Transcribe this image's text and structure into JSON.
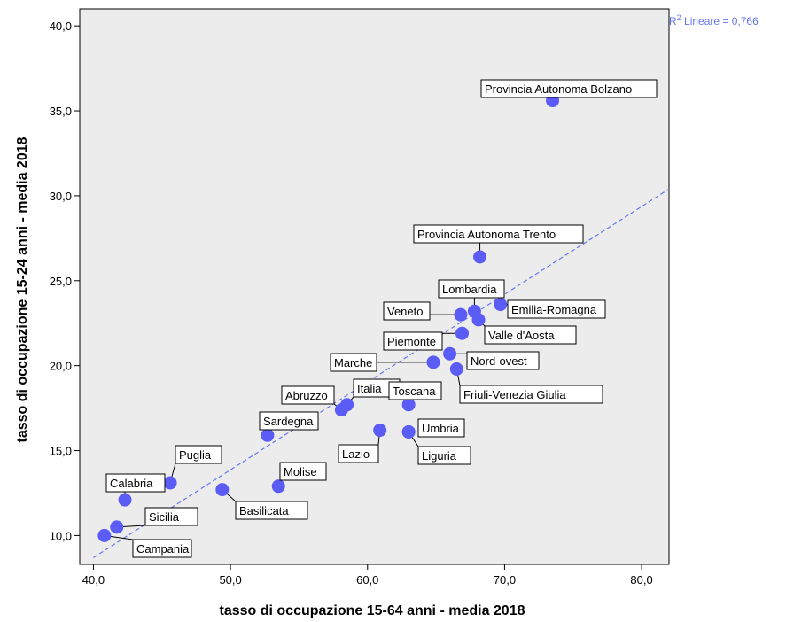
{
  "chart_data": {
    "type": "scatter",
    "xlabel": "tasso di occupazione 15-64 anni - media 2018",
    "ylabel": "tasso di occupazione 15-24 anni - media 2018",
    "xlim": [
      39.0,
      82.0
    ],
    "ylim": [
      8.3,
      41.0
    ],
    "x_ticks": [
      40,
      50,
      60,
      70,
      80
    ],
    "y_ticks": [
      10,
      15,
      20,
      25,
      30,
      35,
      40
    ],
    "x_tick_labels": [
      "40,0",
      "50,0",
      "60,0",
      "70,0",
      "80,0"
    ],
    "y_tick_labels": [
      "10,0",
      "15,0",
      "20,0",
      "25,0",
      "30,0",
      "35,0",
      "40,0"
    ],
    "grid": false,
    "marker_color": "#5b5bf5",
    "plot_background": "#ececec",
    "fit_line": {
      "label": "R2 Lineare = 0,766",
      "r2_prefix": "R",
      "r2_sup": "2",
      "r2_suffix": " Lineare = 0,766",
      "from": [
        40.0,
        8.7
      ],
      "to": [
        82.0,
        30.4
      ],
      "color": "#6677ee"
    },
    "points": [
      {
        "name": "Provincia Autonoma Bolzano",
        "x": 73.5,
        "y": 35.6
      },
      {
        "name": "Provincia Autonoma Trento",
        "x": 68.2,
        "y": 26.4
      },
      {
        "name": "Lombardia",
        "x": 67.8,
        "y": 23.2
      },
      {
        "name": "Emilia-Romagna",
        "x": 69.7,
        "y": 23.6
      },
      {
        "name": "Veneto",
        "x": 66.8,
        "y": 23.0
      },
      {
        "name": "Valle d'Aosta",
        "x": 68.1,
        "y": 22.7
      },
      {
        "name": "Piemonte",
        "x": 66.9,
        "y": 21.9
      },
      {
        "name": "Nord-ovest",
        "x": 66.0,
        "y": 20.7
      },
      {
        "name": "Marche",
        "x": 64.8,
        "y": 20.2
      },
      {
        "name": "Friuli-Venezia Giulia",
        "x": 66.5,
        "y": 19.8
      },
      {
        "name": "Abruzzo",
        "x": 58.1,
        "y": 17.4
      },
      {
        "name": "Italia",
        "x": 58.5,
        "y": 17.7
      },
      {
        "name": "Toscana",
        "x": 63.0,
        "y": 17.7
      },
      {
        "name": "Sardegna",
        "x": 52.7,
        "y": 15.9
      },
      {
        "name": "Umbria",
        "x": 63.0,
        "y": 16.1
      },
      {
        "name": "Lazio",
        "x": 60.9,
        "y": 16.2
      },
      {
        "name": "Liguria",
        "x": 63.0,
        "y": 16.1
      },
      {
        "name": "Puglia",
        "x": 45.6,
        "y": 13.1
      },
      {
        "name": "Molise",
        "x": 53.5,
        "y": 12.9
      },
      {
        "name": "Basilicata",
        "x": 49.4,
        "y": 12.7
      },
      {
        "name": "Calabria",
        "x": 42.3,
        "y": 12.1
      },
      {
        "name": "Sicilia",
        "x": 41.7,
        "y": 10.5
      },
      {
        "name": "Campania",
        "x": 40.8,
        "y": 10.0
      }
    ]
  }
}
